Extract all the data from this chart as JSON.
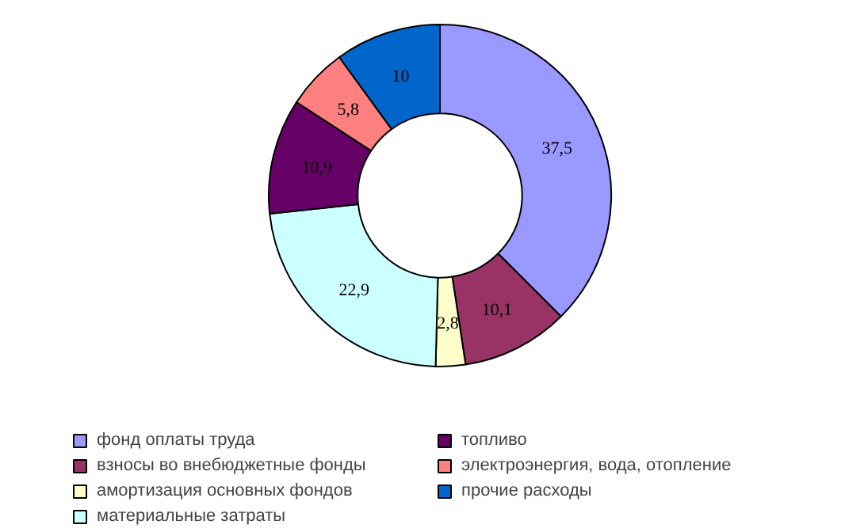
{
  "chart_data": {
    "type": "donut",
    "categories": [
      "фонд оплаты труда",
      "взносы во внебюджетные фонды",
      "амортизация основных фондов",
      "материальные затраты",
      "топливо",
      "электроэнергия, вода, отопление",
      "прочие расходы"
    ],
    "values": [
      37.5,
      10.1,
      2.8,
      22.9,
      10.9,
      5.8,
      10
    ],
    "value_labels": [
      "37,5",
      "10,1",
      "2,8",
      "22,9",
      "10,9",
      "5,8",
      "10"
    ],
    "colors": [
      "#9999ff",
      "#993366",
      "#ffffcc",
      "#ccffff",
      "#660066",
      "#ff8080",
      "#0066cc"
    ],
    "legend": "bottom"
  }
}
